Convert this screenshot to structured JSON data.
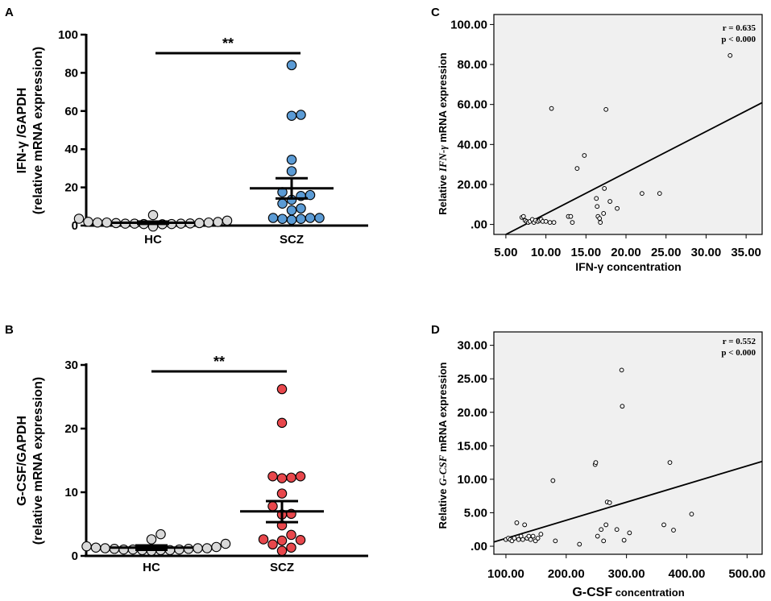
{
  "panels": {
    "A": {
      "label": "A"
    },
    "B": {
      "label": "B"
    },
    "C": {
      "label": "C"
    },
    "D": {
      "label": "D"
    }
  },
  "chart_data": [
    {
      "panel": "A",
      "type": "scatter",
      "ylabel_line1": "IFN-γ /GAPDH",
      "ylabel_line2": "(relative mRNA expression)",
      "ylim": [
        0,
        100
      ],
      "yticks": [
        "0",
        "20",
        "40",
        "60",
        "80",
        "100"
      ],
      "categories": [
        "HC",
        "SCZ"
      ],
      "significance": "**",
      "colors": {
        "HC": "#d9d9d9",
        "SCZ": "#5b9bd5"
      },
      "series": [
        {
          "name": "HC",
          "mean": 1.5,
          "sem_low": 0.9,
          "sem_high": 2.1,
          "values": [
            1.0,
            0.8,
            1.6,
            2.0,
            1.0,
            1.3,
            3.6,
            1.6,
            1.9,
            1.1,
            1.3,
            2.6,
            0.8,
            1.0,
            1.6,
            5.5,
            0.7,
            -0.5
          ]
        },
        {
          "name": "SCZ",
          "mean": 19.5,
          "sem_low": 14.2,
          "sem_high": 24.8,
          "values": [
            84.0,
            58.0,
            57.5,
            34.5,
            28.5,
            17.5,
            16.0,
            15.5,
            13.5,
            11.5,
            9.0,
            8.0,
            4.0,
            4.0,
            4.0,
            3.5,
            3.5,
            3.0
          ]
        }
      ]
    },
    {
      "panel": "B",
      "type": "scatter",
      "ylabel_line1": "G-CSF/GAPDH",
      "ylabel_line2": "(relative mRNA expression)",
      "ylim": [
        0,
        30
      ],
      "yticks": [
        "0",
        "10",
        "20",
        "30"
      ],
      "categories": [
        "HC",
        "SCZ"
      ],
      "significance": "**",
      "colors": {
        "HC": "#d9d9d9",
        "SCZ": "#e8474c"
      },
      "series": [
        {
          "name": "HC",
          "mean": 1.3,
          "sem_low": 0.95,
          "sem_high": 1.65,
          "values": [
            1.0,
            1.2,
            1.1,
            0.9,
            1.3,
            1.5,
            3.4,
            2.6,
            1.4,
            1.2,
            1.0,
            0.9,
            1.1,
            1.2,
            1.9,
            1.0,
            0.8,
            0.9
          ]
        },
        {
          "name": "SCZ",
          "mean": 7.0,
          "sem_low": 5.3,
          "sem_high": 8.6,
          "values": [
            26.2,
            20.9,
            12.5,
            12.5,
            12.3,
            12.2,
            9.8,
            7.8,
            6.6,
            6.5,
            4.8,
            3.3,
            2.6,
            2.5,
            2.4,
            1.8,
            1.3,
            0.8
          ]
        }
      ]
    },
    {
      "panel": "C",
      "type": "scatter",
      "xlabel": "IFN-γ  concentration",
      "ylabel_prefix": "Relative ",
      "ylabel_italic": "IFN-γ",
      "ylabel_suffix": " mRNA expression",
      "xlim": [
        3.5,
        37.0
      ],
      "ylim": [
        -5.0,
        105.0
      ],
      "xticks": [
        "5.00",
        "10.00",
        "15.00",
        "20.00",
        "25.00",
        "30.00",
        "35.00"
      ],
      "yticks": [
        ".00",
        "20.00",
        "40.00",
        "60.00",
        "80.00",
        "100.00"
      ],
      "stat_r": "r = 0.635",
      "stat_p": "p < 0.000",
      "fit_line": {
        "slope": 2.06,
        "intercept": -15.3
      },
      "points": [
        [
          7.0,
          3.5
        ],
        [
          7.2,
          4.0
        ],
        [
          7.4,
          2.0
        ],
        [
          7.6,
          1.5
        ],
        [
          7.8,
          1.0
        ],
        [
          8.0,
          1.5
        ],
        [
          8.3,
          2.5
        ],
        [
          8.5,
          1.0
        ],
        [
          8.7,
          2.0
        ],
        [
          9.0,
          1.5
        ],
        [
          9.2,
          2.0
        ],
        [
          9.4,
          2.5
        ],
        [
          9.6,
          1.5
        ],
        [
          10.0,
          1.5
        ],
        [
          10.5,
          1.0
        ],
        [
          10.7,
          58.0
        ],
        [
          11.0,
          1.0
        ],
        [
          12.8,
          4.0
        ],
        [
          13.1,
          4.0
        ],
        [
          13.3,
          1.0
        ],
        [
          13.9,
          28.0
        ],
        [
          14.8,
          34.5
        ],
        [
          16.3,
          13.0
        ],
        [
          16.4,
          9.0
        ],
        [
          16.5,
          4.0
        ],
        [
          16.7,
          3.0
        ],
        [
          16.8,
          1.0
        ],
        [
          17.2,
          5.5
        ],
        [
          17.3,
          18.0
        ],
        [
          17.5,
          57.5
        ],
        [
          18.0,
          11.5
        ],
        [
          18.9,
          8.0
        ],
        [
          22.0,
          15.5
        ],
        [
          24.2,
          15.5
        ],
        [
          33.0,
          84.5
        ]
      ]
    },
    {
      "panel": "D",
      "type": "scatter",
      "xlabel": "G-CSF",
      "xlabel_suffix": " concentration",
      "ylabel_prefix": "Relative ",
      "ylabel_italic": "G-CSF",
      "ylabel_suffix": " mRNA expression",
      "xlim": [
        80.0,
        525.0
      ],
      "ylim": [
        -1.2,
        32.0
      ],
      "xticks": [
        "100.00",
        "200.00",
        "300.00",
        "400.00",
        "500.00"
      ],
      "yticks": [
        ".00",
        "5.00",
        "10.00",
        "15.00",
        "20.00",
        "25.00",
        "30.00"
      ],
      "stat_r": "r = 0.552",
      "stat_p": "p < 0.000",
      "fit_line": {
        "slope": 0.02704,
        "intercept": -1.53
      },
      "points": [
        [
          100.0,
          1.0
        ],
        [
          104.0,
          1.2
        ],
        [
          107.0,
          1.0
        ],
        [
          110.0,
          0.8
        ],
        [
          114.0,
          1.2
        ],
        [
          118.0,
          3.5
        ],
        [
          121.0,
          1.0
        ],
        [
          125.0,
          1.5
        ],
        [
          128.0,
          1.0
        ],
        [
          131.0,
          3.2
        ],
        [
          135.0,
          1.2
        ],
        [
          138.0,
          1.5
        ],
        [
          141.0,
          1.0
        ],
        [
          145.0,
          1.5
        ],
        [
          149.0,
          0.8
        ],
        [
          153.0,
          1.2
        ],
        [
          158.0,
          1.8
        ],
        [
          178.0,
          9.8
        ],
        [
          182.0,
          0.8
        ],
        [
          222.0,
          0.3
        ],
        [
          248.0,
          12.2
        ],
        [
          249.0,
          12.5
        ],
        [
          252.0,
          1.5
        ],
        [
          258.0,
          2.5
        ],
        [
          262.0,
          0.8
        ],
        [
          266.0,
          3.2
        ],
        [
          268.0,
          6.6
        ],
        [
          272.0,
          6.5
        ],
        [
          284.0,
          2.5
        ],
        [
          292.0,
          26.3
        ],
        [
          293.0,
          20.9
        ],
        [
          296.0,
          0.9
        ],
        [
          305.0,
          2.0
        ],
        [
          362.0,
          3.2
        ],
        [
          372.0,
          12.5
        ],
        [
          378.0,
          2.4
        ],
        [
          408.0,
          4.8
        ]
      ]
    }
  ]
}
